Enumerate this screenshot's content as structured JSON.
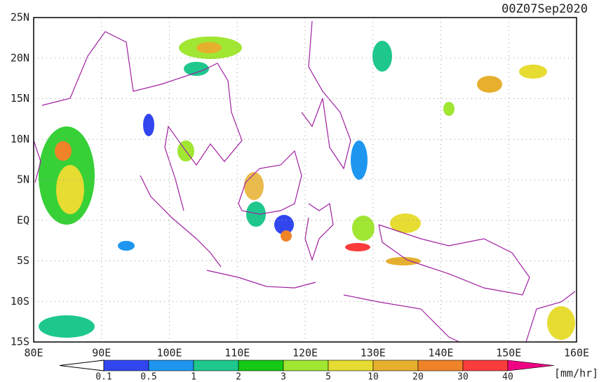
{
  "map": {
    "title": "00Z07Sep2020",
    "lon_labels": [
      "80E",
      "90E",
      "100E",
      "110E",
      "120E",
      "130E",
      "140E",
      "150E",
      "160E"
    ],
    "lat_labels": [
      "25N",
      "20N",
      "15N",
      "10N",
      "5N",
      "EQ",
      "5S",
      "10S",
      "15S"
    ],
    "colorbar": {
      "labels": [
        "0.1",
        "0.5",
        "1",
        "2",
        "3",
        "5",
        "10",
        "20",
        "30",
        "40"
      ],
      "colors": [
        "#3246f0",
        "#1e96f0",
        "#1ec88c",
        "#14c814",
        "#a0e632",
        "#e6dc32",
        "#e6af2d",
        "#f08228",
        "#fa3c3c",
        "#f00082"
      ],
      "unit": "[mm/hr]"
    }
  }
}
